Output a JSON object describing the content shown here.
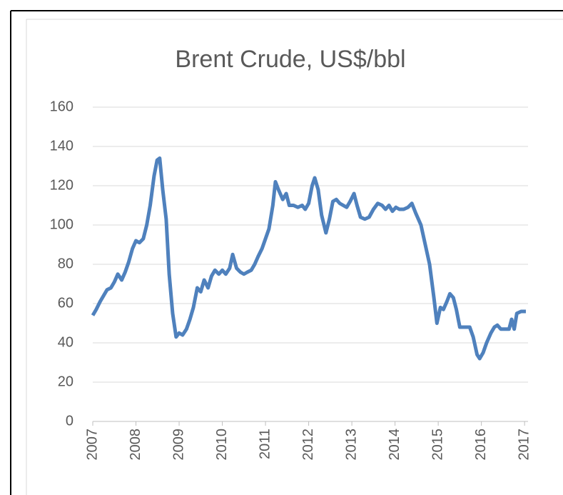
{
  "chart_data": {
    "type": "line",
    "title": "Brent Crude, US$/bbl",
    "x": [
      2007.0,
      2007.08,
      2007.17,
      2007.25,
      2007.33,
      2007.42,
      2007.5,
      2007.58,
      2007.67,
      2007.75,
      2007.83,
      2007.92,
      2008.0,
      2008.08,
      2008.17,
      2008.25,
      2008.33,
      2008.42,
      2008.49,
      2008.55,
      2008.62,
      2008.7,
      2008.77,
      2008.85,
      2008.93,
      2009.0,
      2009.08,
      2009.17,
      2009.25,
      2009.33,
      2009.42,
      2009.5,
      2009.58,
      2009.67,
      2009.75,
      2009.83,
      2009.92,
      2010.0,
      2010.08,
      2010.17,
      2010.24,
      2010.33,
      2010.42,
      2010.5,
      2010.58,
      2010.67,
      2010.75,
      2010.83,
      2010.92,
      2011.0,
      2011.08,
      2011.17,
      2011.23,
      2011.3,
      2011.4,
      2011.48,
      2011.55,
      2011.65,
      2011.75,
      2011.85,
      2011.92,
      2012.0,
      2012.08,
      2012.14,
      2012.22,
      2012.3,
      2012.4,
      2012.48,
      2012.56,
      2012.64,
      2012.72,
      2012.8,
      2012.88,
      2012.96,
      2013.05,
      2013.12,
      2013.2,
      2013.3,
      2013.4,
      2013.5,
      2013.6,
      2013.7,
      2013.78,
      2013.86,
      2013.94,
      2014.02,
      2014.1,
      2014.2,
      2014.3,
      2014.39,
      2014.48,
      2014.6,
      2014.7,
      2014.8,
      2014.9,
      2014.97,
      2015.05,
      2015.12,
      2015.2,
      2015.27,
      2015.35,
      2015.42,
      2015.5,
      2015.6,
      2015.73,
      2015.81,
      2015.9,
      2015.96,
      2016.04,
      2016.12,
      2016.22,
      2016.3,
      2016.37,
      2016.45,
      2016.55,
      2016.64,
      2016.7,
      2016.76,
      2016.82,
      2016.92,
      2017.03
    ],
    "values": [
      54,
      57,
      61,
      64,
      67,
      68,
      71,
      75,
      72,
      76,
      81,
      88,
      92,
      91,
      93,
      100,
      110,
      125,
      133,
      134,
      118,
      103,
      75,
      55,
      43,
      45,
      44,
      47,
      52,
      58,
      68,
      66,
      72,
      68,
      74,
      77,
      75,
      77,
      75,
      78,
      85,
      78,
      76,
      75,
      76,
      77,
      80,
      84,
      88,
      93,
      98,
      110,
      122,
      118,
      113,
      116,
      110,
      110,
      109,
      110,
      108,
      111,
      120,
      124,
      118,
      105,
      96,
      103,
      112,
      113,
      111,
      110,
      109,
      112,
      116,
      110,
      104,
      103,
      104,
      108,
      111,
      110,
      108,
      110,
      107,
      109,
      108,
      108,
      109,
      111,
      106,
      100,
      90,
      80,
      63,
      50,
      58,
      57,
      61,
      65,
      63,
      57,
      48,
      48,
      48,
      43,
      34,
      32,
      35,
      40,
      45,
      48,
      49,
      47,
      47,
      47,
      52,
      47,
      55,
      56,
      56
    ],
    "color": "#4f81bd",
    "xlim": [
      2007,
      2017.08
    ],
    "xticks": [
      2007,
      2008,
      2009,
      2010,
      2011,
      2012,
      2013,
      2014,
      2015,
      2016,
      2017
    ],
    "ylim": [
      0,
      160
    ],
    "yticks": [
      0,
      20,
      40,
      60,
      80,
      100,
      120,
      140,
      160
    ],
    "grid": true
  }
}
